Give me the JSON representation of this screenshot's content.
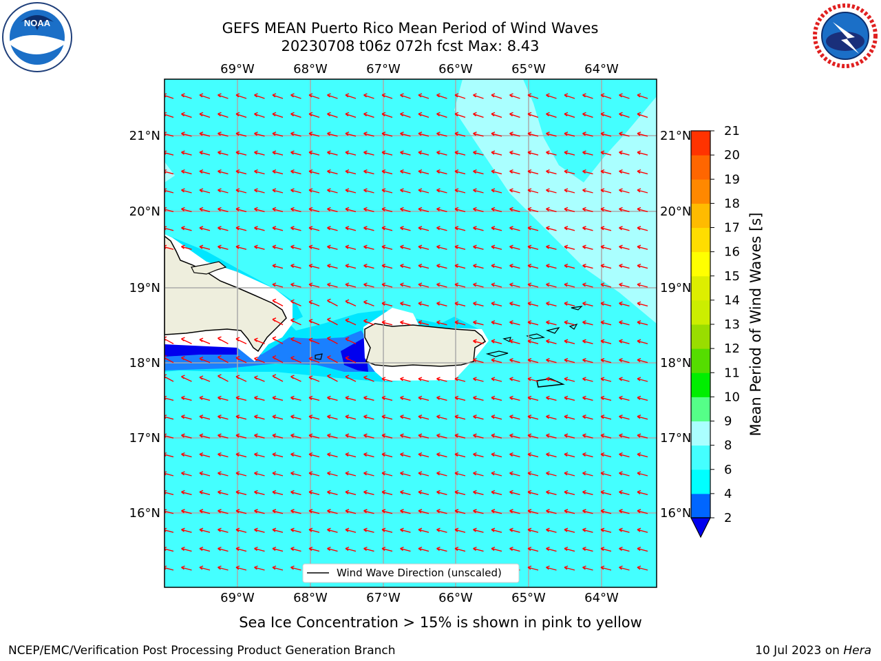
{
  "header": {
    "title_line1": "GEFS MEAN Puerto Rico Mean Period of Wind Waves",
    "title_line2": "20230708 t06z 072h fcst   Max: 8.43"
  },
  "logos": {
    "left": {
      "name": "noaa-logo",
      "text": "NOAA",
      "ring_text": "NATIONAL OCEANIC AND ATMOSPHERIC ADMINISTRATION · U.S. DEPARTMENT OF COMMERCE"
    },
    "right": {
      "name": "nws-logo",
      "ring_text": "NATIONAL WEATHER SERVICE"
    }
  },
  "map": {
    "lon_ticks": [
      "69°W",
      "68°W",
      "67°W",
      "66°W",
      "65°W",
      "64°W"
    ],
    "lat_ticks": [
      "21°N",
      "20°N",
      "19°N",
      "18°N",
      "17°N",
      "16°N"
    ],
    "legend_label": "Wind Wave Direction (unscaled)",
    "colors": {
      "ocean_fill": "#44ffff",
      "light_band": "#aaffff",
      "low_period_dark": "#0000ee",
      "low_period_mid": "#1a80ff",
      "low_period_light": "#00e6ff",
      "land": "#eeeedd",
      "arrow": "#ff0000",
      "grid": "#aaaaaa"
    }
  },
  "colorbar": {
    "label": "Mean Period of Wind Waves [s]",
    "tick_labels": [
      "2",
      "4",
      "6",
      "8",
      "9",
      "10",
      "11",
      "12",
      "13",
      "14",
      "15",
      "16",
      "17",
      "18",
      "19",
      "20",
      "21"
    ],
    "colors": [
      "#0066ff",
      "#00ffff",
      "#44ffff",
      "#aaffff",
      "#55ff88",
      "#00ee00",
      "#55dd00",
      "#99dd00",
      "#ccee00",
      "#ddee00",
      "#ffff00",
      "#ffdd00",
      "#ffbb00",
      "#ff8800",
      "#ff6600",
      "#ff3300",
      "#ff0000"
    ],
    "under_color": "#0000ee"
  },
  "footer": {
    "note": "Sea Ice Concentration > 15% is shown in pink to yellow",
    "left": "NCEP/EMC/Verification Post Processing Product Generation Branch",
    "right_date": "10 Jul 2023 on ",
    "right_host": "Hera"
  }
}
